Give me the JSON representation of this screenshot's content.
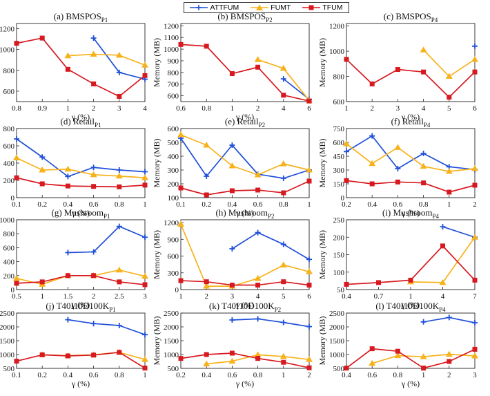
{
  "legend": {
    "items": [
      {
        "name": "ATTFUM",
        "color": "#1f4fd8",
        "marker": "plus"
      },
      {
        "name": "FUMT",
        "color": "#f7b21b",
        "marker": "triangle"
      },
      {
        "name": "TFUM",
        "color": "#d71920",
        "marker": "square"
      }
    ]
  },
  "chart_data": [
    {
      "type": "line",
      "title_main": "(a) BMSPOS",
      "title_sub": "P1",
      "xlabel": "γ (%)",
      "ylabel": "",
      "categories": [
        "0.8",
        "0.9",
        "1",
        "2",
        "3",
        "4"
      ],
      "yticks": [
        600,
        800,
        1000,
        1200
      ],
      "ytick_labels": [
        "600",
        "800",
        "1000",
        "1200"
      ],
      "ylim": [
        500,
        1250
      ],
      "series": [
        {
          "name": "ATTFUM",
          "values": [
            null,
            null,
            null,
            1110,
            780,
            715
          ]
        },
        {
          "name": "FUMT",
          "values": [
            null,
            null,
            940,
            955,
            945,
            850
          ]
        },
        {
          "name": "TFUM",
          "values": [
            1060,
            1110,
            810,
            670,
            550,
            750
          ]
        }
      ]
    },
    {
      "type": "line",
      "title_main": "(b) BMSPOS",
      "title_sub": "P2",
      "xlabel": "γ (%)",
      "ylabel": "Memory (MB)",
      "categories": [
        "0.6",
        "0.8",
        "1",
        "2",
        "4",
        "6"
      ],
      "yticks": [
        600,
        700,
        800,
        900,
        1000,
        1100,
        1200
      ],
      "ytick_labels": [
        "600",
        "700",
        "800",
        "900",
        "1000",
        "1100",
        "1200"
      ],
      "ylim": [
        550,
        1220
      ],
      "series": [
        {
          "name": "ATTFUM",
          "values": [
            null,
            null,
            null,
            null,
            745,
            570
          ]
        },
        {
          "name": "FUMT",
          "values": [
            null,
            null,
            null,
            910,
            835,
            560
          ]
        },
        {
          "name": "TFUM",
          "values": [
            1040,
            1025,
            790,
            845,
            605,
            555
          ]
        }
      ]
    },
    {
      "type": "line",
      "title_main": "(c) BMSPOS",
      "title_sub": "P4",
      "xlabel": "γ (%)",
      "ylabel": "Memory (MB)",
      "categories": [
        "1",
        "2",
        "3",
        "4",
        "5",
        "6"
      ],
      "yticks": [
        600,
        800,
        1000,
        1200
      ],
      "ytick_labels": [
        "600",
        "800",
        "1000",
        "1200"
      ],
      "ylim": [
        600,
        1220
      ],
      "series": [
        {
          "name": "ATTFUM",
          "values": [
            null,
            null,
            null,
            null,
            null,
            1040
          ]
        },
        {
          "name": "FUMT",
          "values": [
            null,
            null,
            null,
            1010,
            800,
            935
          ]
        },
        {
          "name": "TFUM",
          "values": [
            935,
            740,
            855,
            835,
            635,
            835
          ]
        }
      ]
    },
    {
      "type": "line",
      "title_main": "(d) Retail",
      "title_sub": "P1",
      "xlabel": "γ (%)",
      "ylabel": "",
      "categories": [
        "0.1",
        "0.2",
        "0.4",
        "0.6",
        "0.8",
        "1"
      ],
      "yticks": [
        0,
        200,
        400,
        600,
        800
      ],
      "ytick_labels": [
        "0",
        "200",
        "400",
        "600",
        "800"
      ],
      "ylim": [
        0,
        800
      ],
      "series": [
        {
          "name": "ATTFUM",
          "values": [
            680,
            470,
            245,
            350,
            320,
            300
          ]
        },
        {
          "name": "FUMT",
          "values": [
            460,
            320,
            330,
            265,
            250,
            230
          ]
        },
        {
          "name": "TFUM",
          "values": [
            230,
            160,
            135,
            130,
            125,
            145
          ]
        }
      ]
    },
    {
      "type": "line",
      "title_main": "(e) Retail",
      "title_sub": "P2",
      "xlabel": "γ (%)",
      "ylabel": "Memory (MB)",
      "categories": [
        "0.1",
        "0.2",
        "0.4",
        "0.6",
        "0.8",
        "1"
      ],
      "yticks": [
        100,
        200,
        300,
        400,
        500,
        600
      ],
      "ytick_labels": [
        "100",
        "200",
        "300",
        "400",
        "500",
        "600"
      ],
      "ylim": [
        100,
        600
      ],
      "series": [
        {
          "name": "ATTFUM",
          "values": [
            530,
            255,
            480,
            270,
            240,
            300
          ]
        },
        {
          "name": "FUMT",
          "values": [
            555,
            480,
            330,
            265,
            345,
            300
          ]
        },
        {
          "name": "TFUM",
          "values": [
            170,
            120,
            150,
            155,
            135,
            220
          ]
        }
      ]
    },
    {
      "type": "line",
      "title_main": "(f) Retail",
      "title_sub": "P4",
      "xlabel": "γ (%)",
      "ylabel": "Memory (MB)",
      "categories": [
        "0.2",
        "0.4",
        "0.6",
        "0.8",
        "1",
        "2"
      ],
      "yticks": [
        0,
        150,
        300,
        450,
        600,
        750
      ],
      "ytick_labels": [
        "0",
        "150",
        "300",
        "450",
        "600",
        "750"
      ],
      "ylim": [
        0,
        750
      ],
      "series": [
        {
          "name": "ATTFUM",
          "values": [
            500,
            670,
            315,
            480,
            335,
            305
          ]
        },
        {
          "name": "FUMT",
          "values": [
            585,
            370,
            545,
            340,
            285,
            315
          ]
        },
        {
          "name": "TFUM",
          "values": [
            185,
            150,
            170,
            160,
            60,
            135
          ]
        }
      ]
    },
    {
      "type": "line",
      "title_main": "(g) Mushroom",
      "title_sub": "P1",
      "xlabel": "γ (%)",
      "ylabel": "",
      "categories": [
        "0.5",
        "1",
        "1.5",
        "2",
        "2.5",
        "3"
      ],
      "yticks": [
        0,
        200,
        400,
        600,
        800,
        1000
      ],
      "ytick_labels": [
        "0",
        "200",
        "400",
        "600",
        "800",
        "1000"
      ],
      "ylim": [
        0,
        1000
      ],
      "series": [
        {
          "name": "ATTFUM",
          "values": [
            null,
            null,
            530,
            540,
            905,
            750
          ]
        },
        {
          "name": "FUMT",
          "values": [
            160,
            75,
            200,
            200,
            280,
            190
          ]
        },
        {
          "name": "TFUM",
          "values": [
            90,
            110,
            200,
            200,
            110,
            70
          ]
        }
      ]
    },
    {
      "type": "line",
      "title_main": "(h) Mushroom",
      "title_sub": "P2",
      "xlabel": "γ (%)",
      "ylabel": "Memory (MB)",
      "categories": [
        "1",
        "2",
        "3",
        "4",
        "5",
        "6"
      ],
      "yticks": [
        0,
        300,
        600,
        900,
        1200
      ],
      "ytick_labels": [
        "0",
        "300",
        "600",
        "900",
        "1200"
      ],
      "ylim": [
        0,
        1250
      ],
      "series": [
        {
          "name": "ATTFUM",
          "values": [
            null,
            null,
            730,
            1020,
            810,
            540
          ]
        },
        {
          "name": "FUMT",
          "values": [
            1170,
            60,
            60,
            200,
            440,
            320
          ]
        },
        {
          "name": "TFUM",
          "values": [
            160,
            140,
            80,
            80,
            140,
            80
          ]
        }
      ]
    },
    {
      "type": "line",
      "title_main": "(i) Mushroom",
      "title_sub": "P4",
      "xlabel": "γ (%)",
      "ylabel": "Memory (MB)",
      "categories": [
        "0.4",
        "0.7",
        "1",
        "4",
        "7"
      ],
      "yticks": [
        50,
        100,
        150,
        200,
        250
      ],
      "ytick_labels": [
        "50",
        "100",
        "150",
        "200",
        "250"
      ],
      "ylim": [
        50,
        250
      ],
      "series": [
        {
          "name": "ATTFUM",
          "values": [
            null,
            null,
            null,
            230,
            200
          ]
        },
        {
          "name": "FUMT",
          "values": [
            null,
            null,
            72,
            70,
            200
          ]
        },
        {
          "name": "TFUM",
          "values": [
            65,
            70,
            77,
            175,
            77
          ]
        }
      ]
    },
    {
      "type": "line",
      "title_main": "(j) T40I10D100K",
      "title_sub": "P1",
      "xlabel": "γ (%)",
      "ylabel": "",
      "categories": [
        "0.1",
        "0.2",
        "0.4",
        "0.6",
        "0.8",
        "1"
      ],
      "yticks": [
        500,
        1000,
        1500,
        2000,
        2500
      ],
      "ytick_labels": [
        "500",
        "1000",
        "1500",
        "2000",
        "2500"
      ],
      "ylim": [
        500,
        2500
      ],
      "series": [
        {
          "name": "ATTFUM",
          "values": [
            null,
            null,
            2260,
            2120,
            2050,
            1720
          ]
        },
        {
          "name": "FUMT",
          "values": [
            null,
            990,
            960,
            990,
            1080,
            820
          ]
        },
        {
          "name": "TFUM",
          "values": [
            760,
            990,
            950,
            980,
            1080,
            510
          ]
        }
      ]
    },
    {
      "type": "line",
      "title_main": "(k) T40I10D100K",
      "title_sub": "P2",
      "xlabel": "γ (%)",
      "ylabel": "Memory (MB)",
      "categories": [
        "0.2",
        "0.4",
        "0.6",
        "0.8",
        "1",
        "2"
      ],
      "yticks": [
        500,
        1000,
        1500,
        2000,
        2500
      ],
      "ytick_labels": [
        "500",
        "1000",
        "1500",
        "2000",
        "2500"
      ],
      "ylim": [
        500,
        2500
      ],
      "series": [
        {
          "name": "ATTFUM",
          "values": [
            null,
            null,
            2250,
            2290,
            2160,
            2010
          ]
        },
        {
          "name": "FUMT",
          "values": [
            null,
            660,
            760,
            990,
            930,
            820
          ]
        },
        {
          "name": "TFUM",
          "values": [
            860,
            1000,
            1050,
            860,
            720,
            520
          ]
        }
      ]
    },
    {
      "type": "line",
      "title_main": "(l) T40I10D100K",
      "title_sub": "P4",
      "xlabel": "γ (%)",
      "ylabel": "Memory (MB)",
      "categories": [
        "0.4",
        "0.6",
        "0.8",
        "1",
        "2",
        "3"
      ],
      "yticks": [
        500,
        1000,
        1500,
        2000,
        2500
      ],
      "ytick_labels": [
        "500",
        "1000",
        "1500",
        "2000",
        "2500"
      ],
      "ylim": [
        500,
        2500
      ],
      "series": [
        {
          "name": "ATTFUM",
          "values": [
            null,
            null,
            null,
            2180,
            2340,
            2150
          ]
        },
        {
          "name": "FUMT",
          "values": [
            null,
            680,
            960,
            920,
            1010,
            950
          ]
        },
        {
          "name": "TFUM",
          "values": [
            510,
            1210,
            1120,
            510,
            750,
            1190
          ]
        }
      ]
    }
  ]
}
